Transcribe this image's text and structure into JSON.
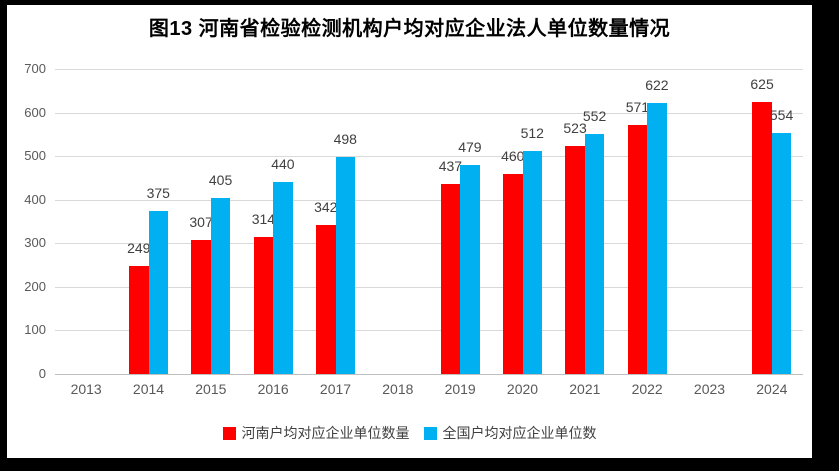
{
  "title": "图13  河南省检验检测机构户均对应企业法人单位数量情况",
  "chart_data": {
    "type": "bar",
    "title": "图13  河南省检验检测机构户均对应企业法人单位数量情况",
    "categories": [
      "2013",
      "2014",
      "2015",
      "2016",
      "2017",
      "2018",
      "2019",
      "2020",
      "2021",
      "2022",
      "2023",
      "2024"
    ],
    "series": [
      {
        "name": "河南户均对应企业单位数量",
        "color": "#FF0000",
        "values": [
          null,
          249,
          307,
          314,
          342,
          null,
          437,
          460,
          523,
          571,
          null,
          625
        ]
      },
      {
        "name": "全国户均对应企业单位数",
        "color": "#00B0F0",
        "values": [
          null,
          375,
          405,
          440,
          498,
          null,
          479,
          512,
          552,
          622,
          null,
          554
        ]
      }
    ],
    "ylim": [
      0,
      700
    ],
    "yticks": [
      0,
      100,
      200,
      300,
      400,
      500,
      600,
      700
    ],
    "grid": true,
    "legend_position": "bottom",
    "data_labels": "outside-end"
  },
  "colors": {
    "background": "#FFFFFF",
    "frame": "#000000",
    "gridline": "#D9D9D9",
    "axis_line": "#BFBFBF",
    "tick_label": "#595959",
    "data_label": "#404040",
    "title": "#000000"
  }
}
